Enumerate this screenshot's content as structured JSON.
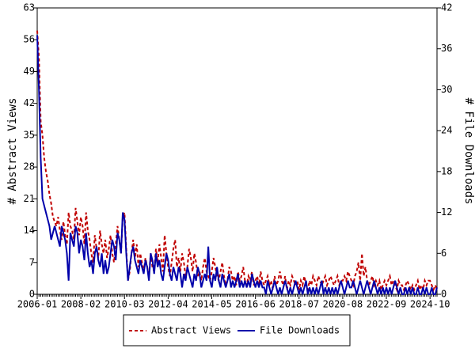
{
  "chart_data": {
    "type": "line",
    "y_label": "# Abstract Views",
    "y2_label": "# File Downloads",
    "categories": [
      "2006-01",
      null,
      null,
      null,
      null,
      null,
      null,
      null,
      null,
      null,
      null,
      null,
      null,
      null,
      null,
      null,
      null,
      null,
      null,
      null,
      null,
      null,
      null,
      null,
      null,
      "2008-02",
      null,
      null,
      null,
      null,
      null,
      null,
      null,
      null,
      null,
      null,
      null,
      null,
      null,
      null,
      null,
      null,
      null,
      null,
      null,
      null,
      null,
      null,
      null,
      null,
      "2010-03",
      null,
      null,
      null,
      null,
      null,
      null,
      null,
      null,
      null,
      null,
      null,
      null,
      null,
      null,
      null,
      null,
      null,
      null,
      null,
      null,
      null,
      null,
      null,
      null,
      "2012-04",
      null,
      null,
      null,
      null,
      null,
      null,
      null,
      null,
      null,
      null,
      null,
      null,
      null,
      null,
      null,
      null,
      null,
      null,
      null,
      null,
      null,
      null,
      null,
      null,
      "2014-05",
      null,
      null,
      null,
      null,
      null,
      null,
      null,
      null,
      null,
      null,
      null,
      null,
      null,
      null,
      null,
      null,
      null,
      null,
      null,
      null,
      null,
      null,
      null,
      null,
      "2016-06",
      null,
      null,
      null,
      null,
      null,
      null,
      null,
      null,
      null,
      null,
      null,
      null,
      null,
      null,
      null,
      null,
      null,
      null,
      null,
      null,
      null,
      null,
      null,
      null,
      "2018-07",
      null,
      null,
      null,
      null,
      null,
      null,
      null,
      null,
      null,
      null,
      null,
      null,
      null,
      null,
      null,
      null,
      null,
      null,
      null,
      null,
      null,
      null,
      null,
      null,
      "2020-08",
      null,
      null,
      null,
      null,
      null,
      null,
      null,
      null,
      null,
      null,
      null,
      null,
      null,
      null,
      null,
      null,
      null,
      null,
      null,
      null,
      null,
      null,
      null,
      null,
      "2022-09",
      null,
      null,
      null,
      null,
      null,
      null,
      null,
      null,
      null,
      null,
      null,
      null,
      null,
      null,
      null,
      null,
      null,
      null,
      null,
      null,
      null,
      null,
      null,
      null,
      "2024-10",
      null,
      null,
      null,
      null
    ],
    "series": [
      {
        "name": "Abstract Views",
        "color": "#c00000",
        "dash": true,
        "axis": "y",
        "values": [
          58,
          52,
          38,
          35,
          30,
          27,
          25,
          22,
          20,
          17,
          16,
          15,
          17,
          14,
          12,
          16,
          13,
          11,
          18,
          15,
          14,
          12,
          19,
          16,
          13,
          17,
          15,
          11,
          18,
          14,
          12,
          9,
          7,
          13,
          10,
          8,
          14,
          11,
          9,
          12,
          8,
          10,
          13,
          9,
          7,
          11,
          15,
          12,
          9,
          17,
          18,
          10,
          3,
          5,
          9,
          12,
          8,
          11,
          6,
          9,
          7,
          5,
          8,
          6,
          4,
          9,
          6,
          5,
          10,
          7,
          11,
          8,
          5,
          13,
          9,
          6,
          4,
          7,
          10,
          12,
          6,
          8,
          5,
          9,
          7,
          4,
          6,
          10,
          8,
          5,
          9,
          7,
          4,
          5,
          3,
          6,
          8,
          5,
          4,
          3,
          5,
          8,
          6,
          4,
          3,
          5,
          7,
          4,
          2,
          3,
          6,
          5,
          3,
          4,
          2,
          5,
          3,
          4,
          6,
          3,
          2,
          4,
          3,
          5,
          2,
          3,
          4,
          2,
          5,
          3,
          2,
          3,
          4,
          2,
          3,
          1,
          4,
          2,
          3,
          5,
          3,
          2,
          4,
          1,
          3,
          2,
          4,
          3,
          2,
          3,
          1,
          3,
          2,
          4,
          2,
          1,
          3,
          2,
          4,
          3,
          2,
          4,
          3,
          2,
          3,
          4,
          2,
          3,
          4,
          3,
          2,
          3,
          4,
          2,
          3,
          3,
          4,
          3,
          5,
          4,
          3,
          2,
          4,
          5,
          7,
          3,
          9,
          4,
          6,
          3,
          2,
          3,
          4,
          2,
          3,
          2,
          3,
          1,
          2,
          3,
          2,
          3,
          4,
          2,
          3,
          2,
          1,
          3,
          2,
          2,
          1,
          2,
          3,
          2,
          1,
          2,
          1,
          2,
          3,
          1,
          2,
          1,
          3,
          2,
          3,
          3,
          2,
          1,
          2,
          1
        ]
      },
      {
        "name": "File Downloads",
        "color": "#0000aa",
        "dash": false,
        "axis": "y2",
        "values": [
          38,
          30,
          20,
          14,
          13,
          12,
          11,
          10,
          8,
          9,
          10,
          9,
          8,
          7,
          10,
          9,
          8,
          6,
          2,
          9,
          8,
          7,
          10,
          9,
          6,
          8,
          7,
          5,
          9,
          6,
          4,
          5,
          3,
          6,
          7,
          5,
          4,
          6,
          3,
          5,
          3,
          4,
          6,
          8,
          7,
          5,
          9,
          8,
          6,
          12,
          11,
          6,
          2,
          4,
          6,
          7,
          5,
          4,
          3,
          5,
          4,
          3,
          5,
          4,
          2,
          6,
          5,
          3,
          6,
          4,
          5,
          3,
          2,
          4,
          6,
          5,
          3,
          2,
          4,
          3,
          2,
          4,
          3,
          1,
          3,
          2,
          4,
          3,
          2,
          1,
          3,
          2,
          4,
          3,
          1,
          2,
          3,
          2,
          7,
          2,
          1,
          3,
          2,
          4,
          2,
          1,
          3,
          2,
          1,
          2,
          3,
          1,
          2,
          1,
          2,
          3,
          1,
          2,
          1,
          2,
          1,
          2,
          1,
          3,
          2,
          1,
          2,
          1,
          2,
          1,
          1,
          0,
          2,
          1,
          0,
          1,
          2,
          1,
          0,
          1,
          0,
          1,
          2,
          1,
          0,
          1,
          0,
          1,
          2,
          1,
          0,
          1,
          0,
          1,
          2,
          0,
          1,
          0,
          1,
          0,
          1,
          0,
          1,
          2,
          0,
          1,
          0,
          1,
          0,
          1,
          0,
          1,
          0,
          1,
          2,
          1,
          0,
          1,
          2,
          1,
          1,
          2,
          1,
          0,
          1,
          2,
          1,
          0,
          1,
          2,
          1,
          0,
          1,
          2,
          1,
          0,
          1,
          0,
          1,
          0,
          1,
          0,
          1,
          0,
          1,
          2,
          1,
          0,
          1,
          0,
          0,
          1,
          0,
          1,
          0,
          1,
          0,
          0,
          1,
          0,
          0,
          1,
          0,
          1,
          0,
          0,
          1,
          0,
          0,
          1
        ]
      }
    ],
    "ylim": [
      0,
      63
    ],
    "yticks": [
      0,
      7,
      14,
      21,
      28,
      35,
      42,
      49,
      56,
      63
    ],
    "y2lim": [
      0,
      42
    ],
    "y2ticks": [
      0,
      6,
      12,
      18,
      24,
      30,
      36,
      42
    ],
    "legend": "bottom"
  }
}
